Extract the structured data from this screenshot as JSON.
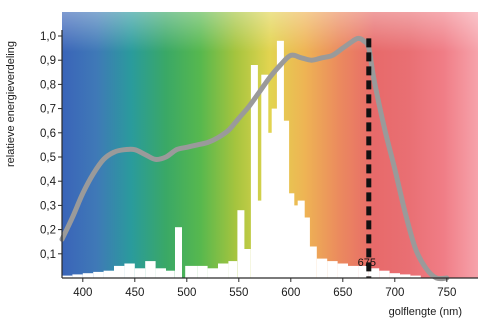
{
  "chart_data": {
    "type": "area",
    "xlabel": "golflengte (nm)",
    "ylabel": "relatieve energieverdeling",
    "xlim": [
      380,
      780
    ],
    "ylim": [
      0,
      1.0
    ],
    "x_ticks": [
      400,
      450,
      500,
      550,
      600,
      650,
      700,
      750
    ],
    "y_ticks": [
      "0,1",
      "0,2",
      "0,3",
      "0,4",
      "0,5",
      "0,6",
      "0,7",
      "0,8",
      "0,9",
      "1,0"
    ],
    "background": "visible spectrum colour gradient",
    "series": [
      {
        "style": "smooth grey curve",
        "color": "#9a9a9a",
        "x": [
          380,
          390,
          400,
          410,
          420,
          430,
          440,
          450,
          460,
          470,
          480,
          490,
          500,
          510,
          520,
          530,
          540,
          550,
          560,
          570,
          580,
          590,
          600,
          610,
          620,
          630,
          640,
          650,
          660,
          665,
          670,
          675,
          680,
          690,
          700,
          710,
          720,
          730,
          740,
          750
        ],
        "y": [
          0.16,
          0.25,
          0.35,
          0.43,
          0.49,
          0.52,
          0.53,
          0.53,
          0.51,
          0.49,
          0.5,
          0.53,
          0.54,
          0.55,
          0.56,
          0.58,
          0.61,
          0.66,
          0.71,
          0.77,
          0.83,
          0.88,
          0.92,
          0.91,
          0.9,
          0.91,
          0.92,
          0.95,
          0.98,
          0.99,
          0.98,
          0.95,
          0.82,
          0.62,
          0.45,
          0.27,
          0.12,
          0.04,
          0.0,
          0.0
        ]
      },
      {
        "style": "white spectral power bars",
        "color": "#ffffff",
        "x": [
          385,
          395,
          405,
          415,
          425,
          435,
          445,
          455,
          465,
          475,
          485,
          492,
          505,
          515,
          525,
          535,
          545,
          552,
          558,
          565,
          570,
          575,
          580,
          585,
          590,
          595,
          600,
          605,
          610,
          615,
          620,
          630,
          640,
          650,
          660,
          670,
          680,
          690,
          700,
          710,
          720
        ],
        "y": [
          0.01,
          0.015,
          0.02,
          0.025,
          0.03,
          0.05,
          0.06,
          0.04,
          0.07,
          0.04,
          0.03,
          0.21,
          0.05,
          0.05,
          0.04,
          0.06,
          0.07,
          0.28,
          0.12,
          0.88,
          0.32,
          0.84,
          0.6,
          0.7,
          0.98,
          0.65,
          0.35,
          0.3,
          0.32,
          0.25,
          0.13,
          0.08,
          0.07,
          0.06,
          0.05,
          0.05,
          0.04,
          0.03,
          0.02,
          0.015,
          0.01
        ]
      }
    ],
    "markers": [
      {
        "x": 675,
        "label": "675",
        "style": "dashed black vertical line"
      }
    ]
  },
  "colors": {
    "gradient_stops": [
      "#3a64b8",
      "#3f79b7",
      "#2a9b9c",
      "#3aa866",
      "#57b84e",
      "#a5c43e",
      "#e2d450",
      "#eeb454",
      "#eb8a5e",
      "#e76a6a",
      "#e96f73",
      "#f07d86",
      "#f6a3ab"
    ],
    "curve": "#9a9a9a",
    "bars": "#ffffff",
    "marker": "#111111",
    "axis": "#2a2a2a"
  }
}
